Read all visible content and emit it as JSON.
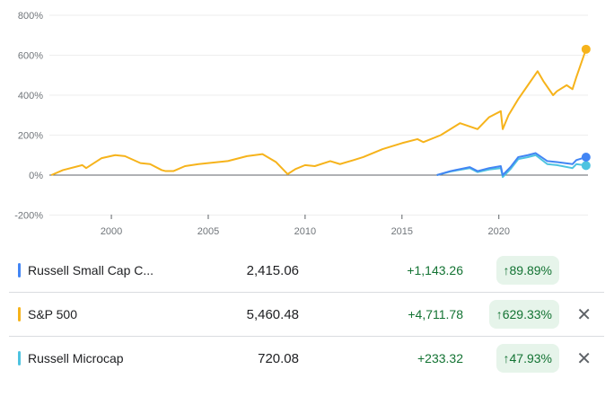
{
  "chart_data": {
    "type": "line",
    "title": "",
    "xlabel": "",
    "ylabel": "",
    "ylim": [
      -200,
      800
    ],
    "xlim": [
      1996.8,
      2024.6
    ],
    "y_ticks": [
      "800%",
      "600%",
      "400%",
      "200%",
      "0%",
      "-200%"
    ],
    "y_tick_values": [
      800,
      600,
      400,
      200,
      0,
      -200
    ],
    "x_ticks": [
      "2000",
      "2005",
      "2010",
      "2015",
      "2020"
    ],
    "x_tick_values": [
      2000,
      2005,
      2010,
      2015,
      2020
    ],
    "grid": true,
    "series": [
      {
        "name": "S&P 500",
        "color": "#f6b31b",
        "x": [
          1996.9,
          1997.5,
          1998.5,
          1998.7,
          1999.5,
          2000.2,
          2000.7,
          2001.5,
          2002.0,
          2002.6,
          2002.8,
          2003.2,
          2003.8,
          2004.5,
          2005,
          2006,
          2007,
          2007.8,
          2008.5,
          2009.1,
          2009.5,
          2010,
          2010.5,
          2011.3,
          2011.8,
          2012.5,
          2013,
          2014,
          2015,
          2015.8,
          2016.1,
          2017,
          2018,
          2018.9,
          2019.5,
          2020.1,
          2020.2,
          2020.5,
          2021,
          2021.5,
          2022,
          2022.3,
          2022.8,
          2023,
          2023.5,
          2023.8,
          2024,
          2024.5
        ],
        "values": [
          0,
          25,
          50,
          35,
          85,
          100,
          95,
          60,
          55,
          25,
          20,
          20,
          45,
          55,
          60,
          70,
          95,
          105,
          65,
          5,
          30,
          50,
          45,
          70,
          55,
          75,
          90,
          130,
          160,
          180,
          165,
          200,
          260,
          230,
          290,
          320,
          230,
          300,
          380,
          450,
          520,
          470,
          400,
          420,
          450,
          430,
          490,
          630
        ]
      },
      {
        "name": "Russell Small Cap Completeness",
        "color": "#4285f4",
        "x": [
          2016.8,
          2017.5,
          2018.5,
          2018.9,
          2019.5,
          2020.1,
          2020.2,
          2020.6,
          2021,
          2021.5,
          2021.9,
          2022.5,
          2023,
          2023.8,
          2024,
          2024.5
        ],
        "values": [
          0,
          20,
          40,
          20,
          35,
          45,
          0,
          40,
          90,
          100,
          110,
          70,
          65,
          55,
          75,
          90
        ]
      },
      {
        "name": "Russell Microcap",
        "color": "#4ec3e0",
        "x": [
          2016.8,
          2017.5,
          2018.5,
          2018.9,
          2019.5,
          2020.1,
          2020.2,
          2020.6,
          2021,
          2021.5,
          2021.9,
          2022.5,
          2023,
          2023.8,
          2024,
          2024.5
        ],
        "values": [
          0,
          18,
          35,
          15,
          28,
          35,
          -10,
          30,
          80,
          90,
          100,
          55,
          50,
          35,
          55,
          48
        ]
      }
    ]
  },
  "table": [
    {
      "name": "Russell Small Cap C...",
      "price": "2,415.06",
      "change": "+1,143.26",
      "percent": "89.89%",
      "color": "#4285f4",
      "close": ""
    },
    {
      "name": "S&P 500",
      "price": "5,460.48",
      "change": "+4,711.78",
      "percent": "629.33%",
      "color": "#f6b31b",
      "close": "✕"
    },
    {
      "name": "Russell Microcap",
      "price": "720.08",
      "change": "+233.32",
      "percent": "47.93%",
      "color": "#4ec3e0",
      "close": "✕"
    }
  ],
  "arrow": "↑"
}
